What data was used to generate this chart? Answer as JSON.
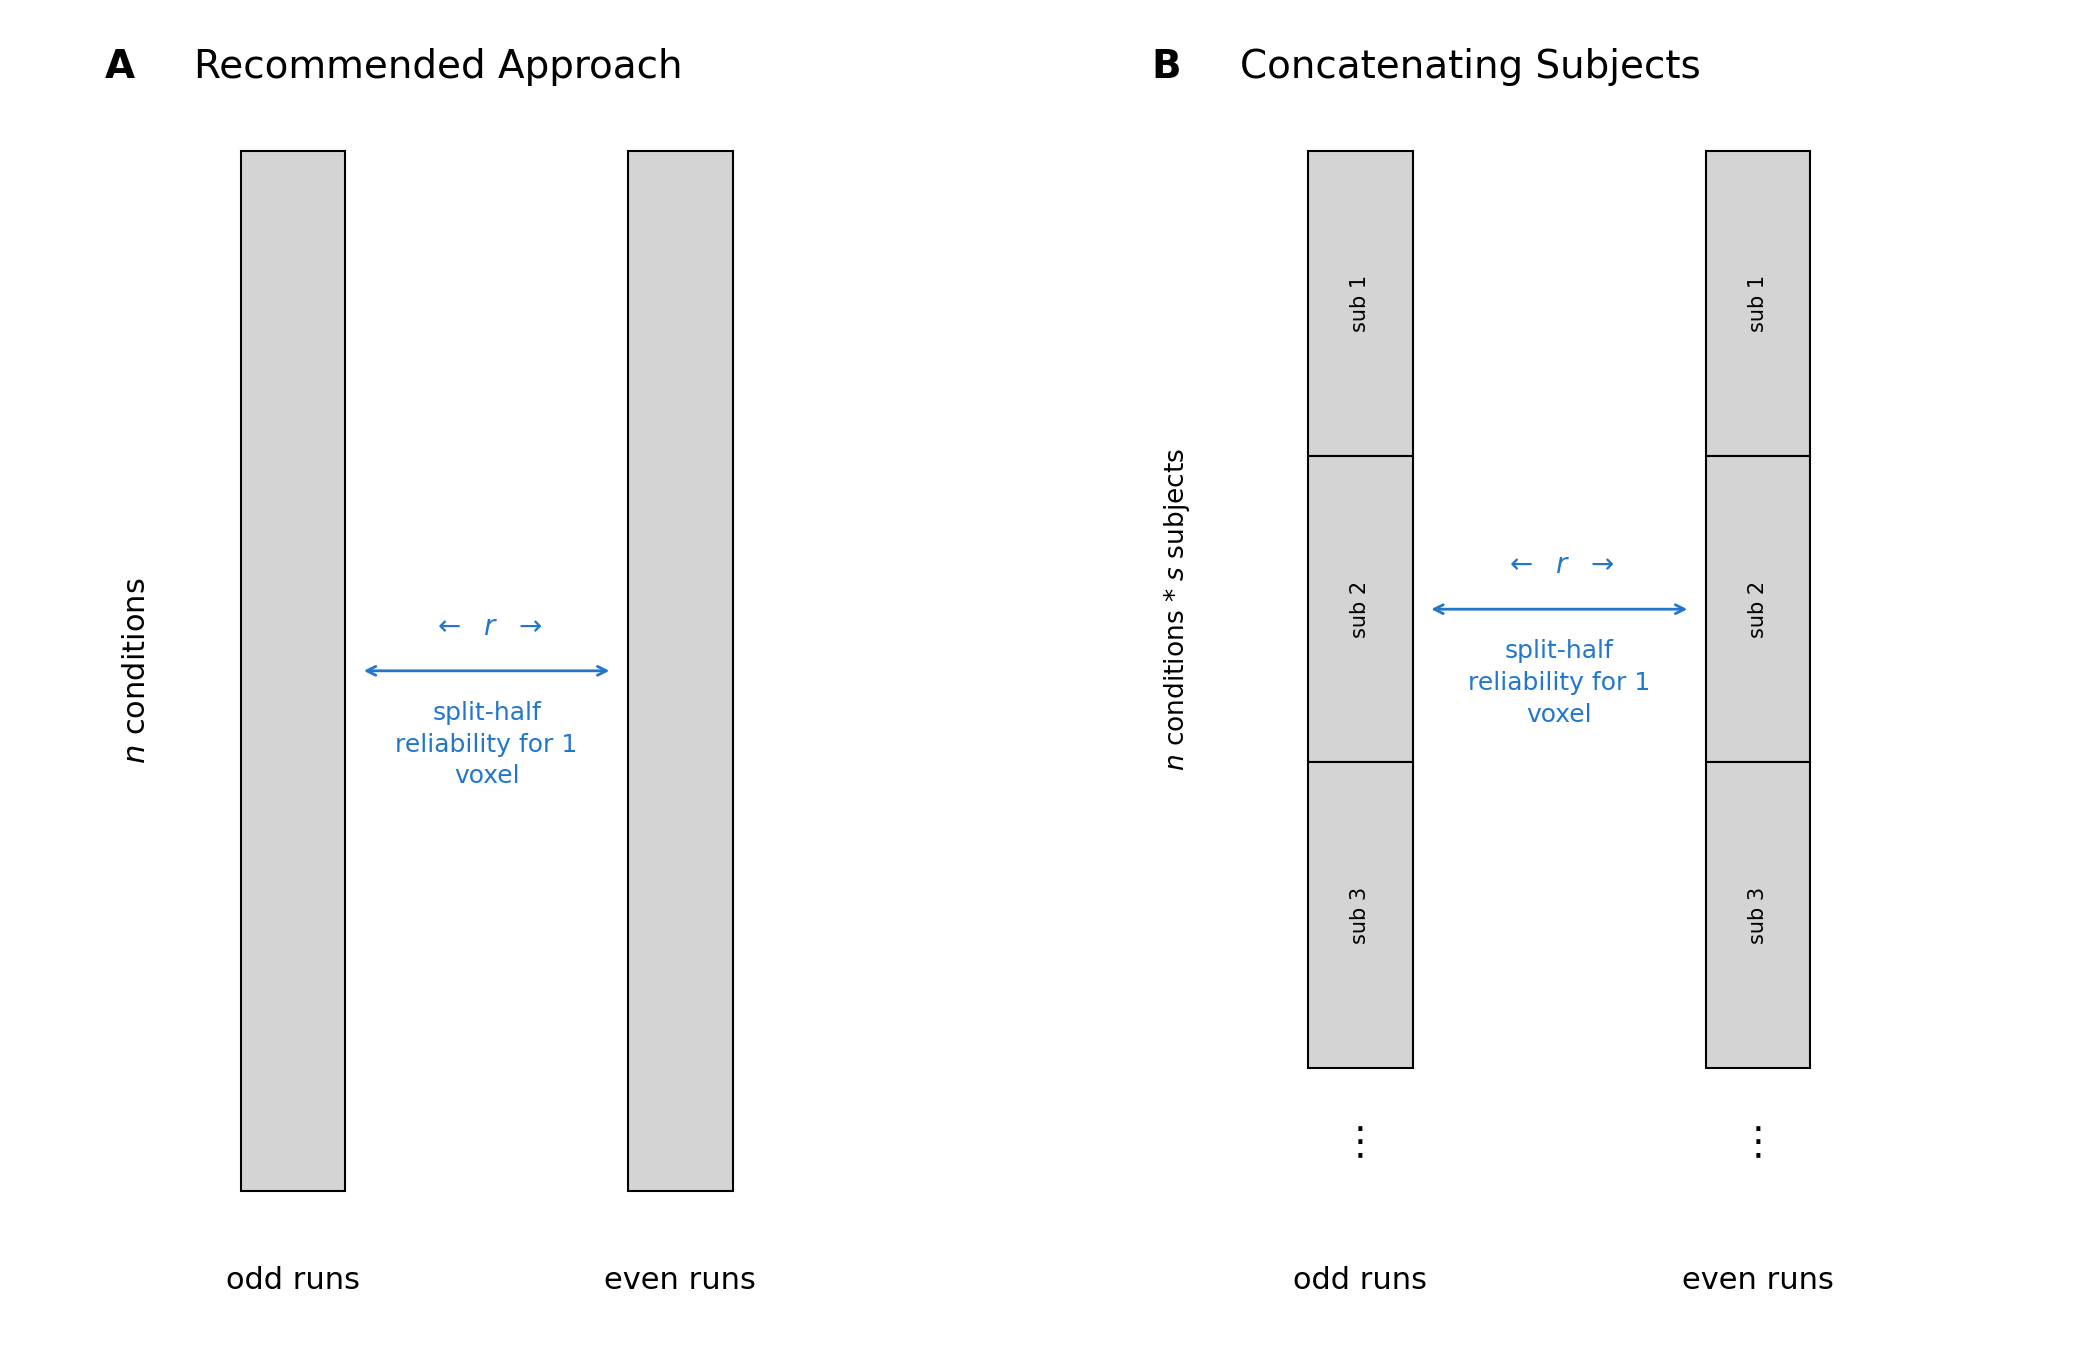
{
  "fig_width": 20.93,
  "fig_height": 13.69,
  "background_color": "#ffffff",
  "panel_A_title": "Recommended Approach",
  "panel_B_title": "Concatenating Subjects",
  "panel_label_A": "A",
  "panel_label_B": "B",
  "box_fill_color": "#d4d4d4",
  "box_edge_color": "#000000",
  "blue_color": "#2277cc",
  "label_odd": "odd runs",
  "label_even": "even runs",
  "n_conditions_label": "n conditions",
  "n_conditions_s_subjects_label": "n conditions * s subjects",
  "reliability_label": "split-half\nreliability for 1\nvoxel",
  "sub_labels": [
    "sub 1",
    "sub 2",
    "sub 3"
  ],
  "dots": "⋮"
}
